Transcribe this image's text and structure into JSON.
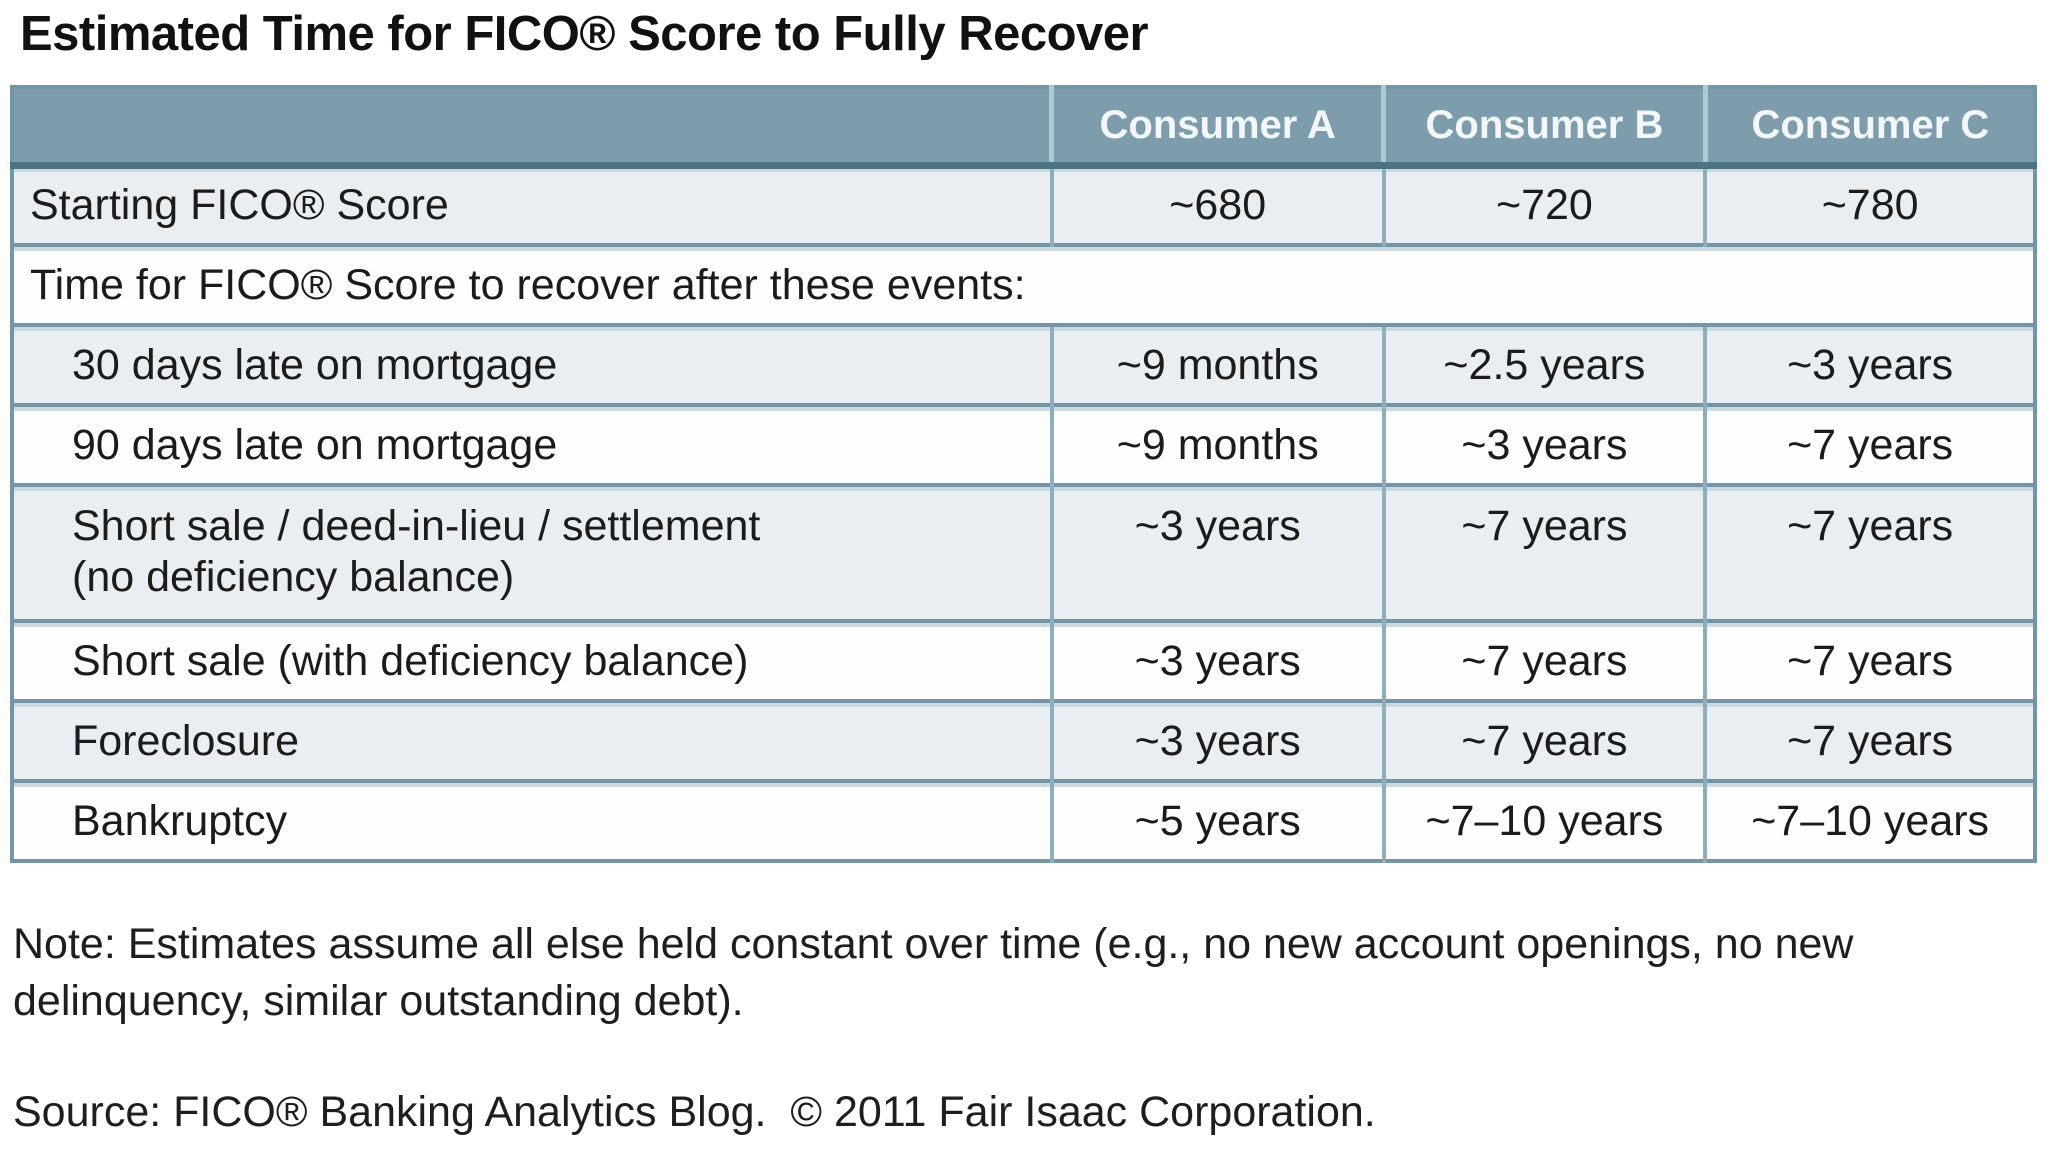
{
  "page": {
    "title": "Estimated Time for FICO® Score to Fully Recover",
    "note": "Note: Estimates assume all else held constant over time (e.g., no new account openings, no new delinquency, similar outstanding debt).",
    "source": "Source: FICO® Banking Analytics Blog.  © 2011 Fair Isaac Corporation."
  },
  "table": {
    "columns": [
      "",
      "Consumer A",
      "Consumer B",
      "Consumer C"
    ],
    "starting_row": {
      "label": "Starting FICO® Score",
      "values": [
        "~680",
        "~720",
        "~780"
      ]
    },
    "section_row": {
      "label": "Time for FICO® Score to recover after these events:"
    },
    "event_rows": [
      {
        "label": "30 days late on mortgage",
        "values": [
          "~9 months",
          "~2.5 years",
          "~3 years"
        ]
      },
      {
        "label": "90 days late on mortgage",
        "values": [
          "~9 months",
          "~3 years",
          "~7 years"
        ]
      },
      {
        "label": "Short sale / deed-in-lieu / settlement\n(no deficiency balance)",
        "values": [
          "~3 years",
          "~7 years",
          "~7 years"
        ]
      },
      {
        "label": "Short sale (with deficiency balance)",
        "values": [
          "~3 years",
          "~7 years",
          "~7 years"
        ]
      },
      {
        "label": "Foreclosure",
        "values": [
          "~3 years",
          "~7 years",
          "~7 years"
        ]
      },
      {
        "label": "Bankruptcy",
        "values": [
          "~5 years",
          "~7–10 years",
          "~7–10 years"
        ]
      }
    ]
  },
  "chart_data": {
    "type": "table",
    "title": "Estimated Time for FICO® Score to Fully Recover",
    "columns": [
      "",
      "Consumer A",
      "Consumer B",
      "Consumer C"
    ],
    "rows": [
      [
        "Starting FICO® Score",
        "~680",
        "~720",
        "~780"
      ],
      [
        "Time for FICO® Score to recover after these events:",
        "",
        "",
        ""
      ],
      [
        "30 days late on mortgage",
        "~9 months",
        "~2.5 years",
        "~3 years"
      ],
      [
        "90 days late on mortgage",
        "~9 months",
        "~3 years",
        "~7 years"
      ],
      [
        "Short sale / deed-in-lieu / settlement (no deficiency balance)",
        "~3 years",
        "~7 years",
        "~7 years"
      ],
      [
        "Short sale (with deficiency balance)",
        "~3 years",
        "~7 years",
        "~7 years"
      ],
      [
        "Foreclosure",
        "~3 years",
        "~7 years",
        "~7 years"
      ],
      [
        "Bankruptcy",
        "~5 years",
        "~7–10 years",
        "~7–10 years"
      ]
    ],
    "note": "Note: Estimates assume all else held constant over time (e.g., no new account openings, no new delinquency, similar outstanding debt).",
    "source": "Source: FICO® Banking Analytics Blog.  © 2011 Fair Isaac Corporation."
  },
  "colors": {
    "header-bg": "#7D9DAD",
    "header-text": "#F3F7F9",
    "row-light": "#E8EEF2",
    "row-white": "#FDFDFE",
    "border-dark": "#4A7384",
    "border-mid": "#7396A6",
    "border-light": "#CBDAE2",
    "colsep-mid": "#8FAEBC",
    "colsep-light": "#AFC8D3",
    "text": "#1B1B1B"
  }
}
